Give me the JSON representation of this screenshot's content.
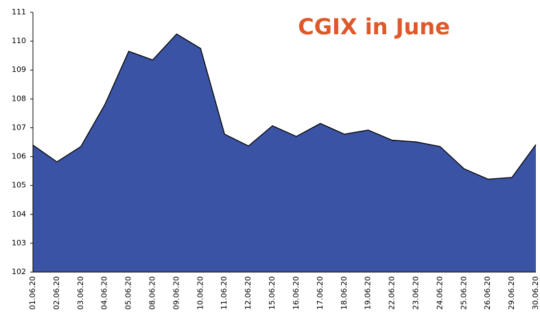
{
  "chart_data": {
    "type": "area",
    "title": "CGIX in June",
    "categories": [
      "01.06.20",
      "02.06.20",
      "03.06.20",
      "04.06.20",
      "05.06.20",
      "08.06.20",
      "09.06.20",
      "10.06.20",
      "11.06.20",
      "12.06.20",
      "15.06.20",
      "16.06.20",
      "17.06.20",
      "18.06.20",
      "19.06.20",
      "22.06.20",
      "23.06.20",
      "24.06.20",
      "25.06.20",
      "26.06.20",
      "29.06.20",
      "30.06.20"
    ],
    "values": [
      106.4,
      105.82,
      106.35,
      107.8,
      109.65,
      109.35,
      110.25,
      109.75,
      106.78,
      106.37,
      107.07,
      106.7,
      107.15,
      106.78,
      106.92,
      106.57,
      106.51,
      106.35,
      105.58,
      105.22,
      105.28,
      106.42
    ],
    "color": "#3a53a4",
    "ylim": [
      102,
      111
    ],
    "yticks": [
      102,
      103,
      104,
      105,
      106,
      107,
      108,
      109,
      110,
      111
    ]
  }
}
